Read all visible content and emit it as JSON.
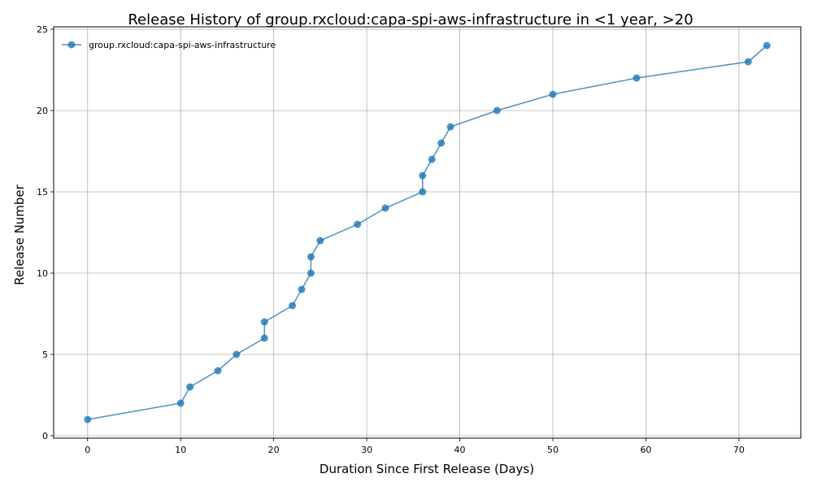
{
  "chart_data": {
    "type": "line",
    "title": "Release History of group.rxcloud:capa-spi-aws-infrastructure in <1 year, >20",
    "xlabel": "Duration Since First Release (Days)",
    "ylabel": "Release Number",
    "xlim": [
      -3.65,
      76.65
    ],
    "ylim": [
      -0.15,
      25.15
    ],
    "xticks": [
      0,
      10,
      20,
      30,
      40,
      50,
      60,
      70
    ],
    "yticks": [
      0,
      5,
      10,
      15,
      20,
      25
    ],
    "grid": true,
    "legend_position": "top-left",
    "series": [
      {
        "name": "group.rxcloud:capa-spi-aws-infrastructure",
        "color": "#1f77b4",
        "x": [
          0,
          10,
          11,
          14,
          16,
          19,
          19,
          22,
          23,
          24,
          24,
          25,
          29,
          32,
          36,
          36,
          37,
          38,
          39,
          44,
          50,
          59,
          71,
          73
        ],
        "y": [
          1,
          2,
          3,
          4,
          5,
          6,
          7,
          8,
          9,
          10,
          11,
          12,
          13,
          14,
          15,
          16,
          17,
          18,
          19,
          20,
          21,
          22,
          23,
          24
        ]
      }
    ]
  }
}
